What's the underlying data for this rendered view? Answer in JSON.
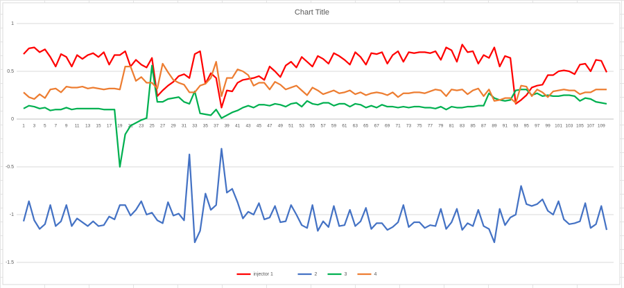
{
  "chart_data": {
    "type": "line",
    "title": "Chart Title",
    "categories": [
      1,
      null,
      3,
      null,
      5,
      null,
      7,
      null,
      9,
      null,
      11,
      null,
      13,
      null,
      15,
      null,
      17,
      null,
      19,
      null,
      21,
      null,
      23,
      null,
      25,
      null,
      27,
      null,
      29,
      null,
      31,
      null,
      33,
      null,
      35,
      null,
      37,
      null,
      39,
      null,
      41,
      null,
      43,
      null,
      45,
      null,
      47,
      null,
      49,
      null,
      51,
      null,
      53,
      null,
      55,
      null,
      57,
      null,
      59,
      null,
      61,
      null,
      63,
      null,
      65,
      null,
      67,
      null,
      69,
      null,
      71,
      null,
      73,
      null,
      75,
      null,
      77,
      null,
      79,
      null,
      81,
      null,
      83,
      null,
      85,
      null,
      87,
      null,
      89,
      null,
      91,
      null,
      93,
      null,
      95,
      null,
      97,
      null,
      99,
      null,
      101,
      null,
      103,
      null,
      105,
      null,
      107,
      null,
      109,
      null
    ],
    "series": [
      {
        "name": "injector 1",
        "color": "#ff0000",
        "values": [
          0.68,
          0.74,
          0.75,
          0.7,
          0.73,
          0.65,
          0.55,
          0.68,
          0.65,
          0.55,
          0.67,
          0.63,
          0.67,
          0.69,
          0.65,
          0.7,
          0.57,
          0.67,
          0.67,
          0.71,
          0.55,
          0.62,
          0.57,
          0.54,
          0.64,
          0.24,
          0.3,
          0.35,
          0.39,
          0.45,
          0.47,
          0.43,
          0.68,
          0.71,
          0.37,
          0.48,
          0.43,
          0.12,
          0.3,
          0.29,
          0.38,
          0.41,
          0.42,
          0.43,
          0.45,
          0.41,
          0.55,
          0.5,
          0.44,
          0.56,
          0.6,
          0.54,
          0.65,
          0.6,
          0.55,
          0.66,
          0.63,
          0.58,
          0.69,
          0.66,
          0.62,
          0.57,
          0.7,
          0.65,
          0.57,
          0.69,
          0.68,
          0.7,
          0.58,
          0.67,
          0.71,
          0.6,
          0.7,
          0.69,
          0.7,
          0.7,
          0.69,
          0.71,
          0.62,
          0.75,
          0.72,
          0.6,
          0.78,
          0.7,
          0.71,
          0.58,
          0.67,
          0.64,
          0.75,
          0.55,
          0.66,
          0.64,
          0.16,
          0.2,
          0.25,
          0.33,
          0.35,
          0.36,
          0.46,
          0.46,
          0.5,
          0.51,
          0.5,
          0.47,
          0.57,
          0.58,
          0.5,
          0.62,
          0.61,
          0.49
        ]
      },
      {
        "name": "2",
        "color": "#4472c4",
        "values": [
          -1.07,
          -0.86,
          -1.06,
          -1.15,
          -1.1,
          -0.9,
          -1.12,
          -1.07,
          -0.9,
          -1.12,
          -1.04,
          -1.08,
          -1.12,
          -1.07,
          -1.12,
          -1.11,
          -1.02,
          -1.05,
          -0.9,
          -0.9,
          -1.01,
          -0.95,
          -0.86,
          -1.0,
          -0.98,
          -1.06,
          -1.09,
          -0.87,
          -1.01,
          -0.99,
          -1.06,
          -0.37,
          -1.29,
          -1.17,
          -0.78,
          -0.95,
          -0.9,
          -0.31,
          -0.77,
          -0.73,
          -0.87,
          -1.04,
          -0.97,
          -1.0,
          -0.88,
          -1.05,
          -1.03,
          -0.91,
          -1.08,
          -1.07,
          -0.9,
          -1.0,
          -1.11,
          -1.14,
          -0.9,
          -1.17,
          -1.07,
          -1.13,
          -0.91,
          -1.12,
          -1.11,
          -0.95,
          -1.12,
          -1.07,
          -0.93,
          -1.15,
          -1.09,
          -1.09,
          -1.16,
          -1.13,
          -1.08,
          -0.9,
          -1.13,
          -1.08,
          -1.08,
          -1.14,
          -1.11,
          -1.12,
          -0.94,
          -1.15,
          -1.08,
          -0.94,
          -1.16,
          -1.09,
          -1.12,
          -0.95,
          -1.12,
          -1.15,
          -1.29,
          -0.94,
          -1.11,
          -1.03,
          -1.0,
          -0.7,
          -0.89,
          -0.91,
          -0.89,
          -0.84,
          -0.96,
          -1.0,
          -0.86,
          -1.05,
          -1.1,
          -1.09,
          -1.07,
          -0.88,
          -1.14,
          -1.1,
          -0.91,
          -1.16
        ]
      },
      {
        "name": "3",
        "color": "#00b050",
        "values": [
          0.11,
          0.14,
          0.13,
          0.11,
          0.12,
          0.09,
          0.1,
          0.1,
          0.12,
          0.1,
          0.11,
          0.11,
          0.11,
          0.11,
          0.11,
          0.1,
          0.1,
          0.1,
          -0.5,
          -0.16,
          -0.07,
          -0.04,
          -0.01,
          0.01,
          0.56,
          0.18,
          0.18,
          0.21,
          0.22,
          0.23,
          0.18,
          0.16,
          0.29,
          0.06,
          0.05,
          0.04,
          0.1,
          0.01,
          0.04,
          0.07,
          0.09,
          0.12,
          0.14,
          0.12,
          0.15,
          0.15,
          0.14,
          0.16,
          0.15,
          0.13,
          0.16,
          0.17,
          0.13,
          0.19,
          0.16,
          0.15,
          0.17,
          0.17,
          0.14,
          0.16,
          0.16,
          0.13,
          0.16,
          0.15,
          0.12,
          0.14,
          0.12,
          0.15,
          0.13,
          0.13,
          0.12,
          0.13,
          0.12,
          0.13,
          0.13,
          0.12,
          0.12,
          0.11,
          0.13,
          0.1,
          0.13,
          0.12,
          0.12,
          0.13,
          0.13,
          0.14,
          0.14,
          0.27,
          0.22,
          0.2,
          0.19,
          0.2,
          0.3,
          0.31,
          0.31,
          0.25,
          0.27,
          0.24,
          0.25,
          0.24,
          0.24,
          0.25,
          0.25,
          0.24,
          0.19,
          0.22,
          0.21,
          0.18,
          0.17,
          0.16
        ]
      },
      {
        "name": "4",
        "color": "#ed7d31",
        "values": [
          0.28,
          0.23,
          0.21,
          0.26,
          0.22,
          0.31,
          0.32,
          0.28,
          0.34,
          0.33,
          0.33,
          0.34,
          0.32,
          0.33,
          0.32,
          0.31,
          0.32,
          0.32,
          0.31,
          0.55,
          0.55,
          0.4,
          0.44,
          0.38,
          0.38,
          0.32,
          0.58,
          0.49,
          0.41,
          0.38,
          0.36,
          0.28,
          0.28,
          0.35,
          0.37,
          0.43,
          0.6,
          0.24,
          0.43,
          0.43,
          0.52,
          0.5,
          0.46,
          0.35,
          0.38,
          0.38,
          0.31,
          0.39,
          0.36,
          0.31,
          0.33,
          0.35,
          0.3,
          0.25,
          0.33,
          0.3,
          0.26,
          0.28,
          0.3,
          0.27,
          0.28,
          0.3,
          0.26,
          0.28,
          0.25,
          0.27,
          0.28,
          0.27,
          0.25,
          0.28,
          0.23,
          0.27,
          0.27,
          0.28,
          0.28,
          0.27,
          0.29,
          0.31,
          0.3,
          0.24,
          0.31,
          0.3,
          0.31,
          0.26,
          0.3,
          0.32,
          0.24,
          0.31,
          0.19,
          0.2,
          0.22,
          0.22,
          0.17,
          0.35,
          0.34,
          0.24,
          0.31,
          0.28,
          0.23,
          0.29,
          0.3,
          0.31,
          0.3,
          0.3,
          0.26,
          0.28,
          0.28,
          0.31,
          0.31,
          0.31
        ]
      }
    ],
    "ylim": [
      -1.5,
      1
    ],
    "yticks": [
      -1.5,
      -1,
      -0.5,
      0,
      0.5,
      1
    ],
    "grid": true,
    "legend": "bottom"
  }
}
